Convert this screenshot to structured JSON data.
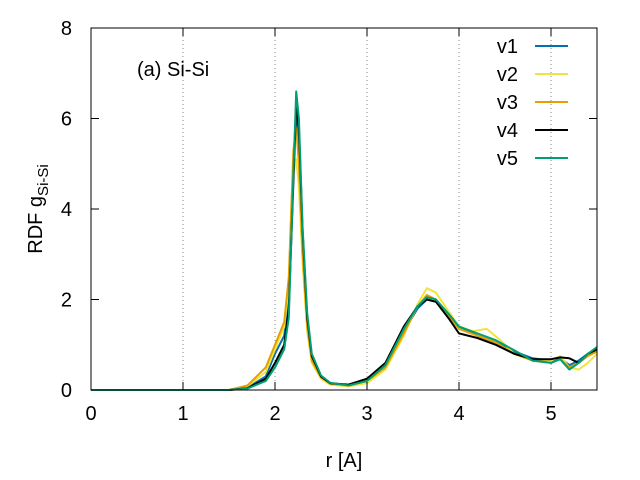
{
  "chart_data": {
    "type": "line",
    "annotation": "(a) Si-Si",
    "xlabel": "r  [A]",
    "ylabel_main": "RDF  g",
    "ylabel_sub": "Si-Si",
    "xlim": [
      0,
      5.5
    ],
    "ylim": [
      0,
      8
    ],
    "xticks": [
      0,
      1,
      2,
      3,
      4,
      5
    ],
    "yticks": [
      0,
      2,
      4,
      6,
      8
    ],
    "xgrid": "dotted vertical lines at x ticks",
    "legend_position": "top-right",
    "series": [
      {
        "name": "v1",
        "color": "#0072b2",
        "points": [
          [
            0,
            0
          ],
          [
            1.5,
            0
          ],
          [
            1.7,
            0.05
          ],
          [
            1.9,
            0.3
          ],
          [
            2.0,
            0.8
          ],
          [
            2.1,
            1.2
          ],
          [
            2.15,
            2.0
          ],
          [
            2.2,
            5.0
          ],
          [
            2.23,
            6.2
          ],
          [
            2.26,
            5.5
          ],
          [
            2.3,
            3.2
          ],
          [
            2.35,
            1.5
          ],
          [
            2.4,
            0.7
          ],
          [
            2.5,
            0.3
          ],
          [
            2.6,
            0.15
          ],
          [
            2.8,
            0.1
          ],
          [
            3.0,
            0.2
          ],
          [
            3.2,
            0.5
          ],
          [
            3.4,
            1.3
          ],
          [
            3.55,
            1.8
          ],
          [
            3.65,
            2.0
          ],
          [
            3.75,
            1.95
          ],
          [
            3.9,
            1.6
          ],
          [
            4.0,
            1.4
          ],
          [
            4.2,
            1.2
          ],
          [
            4.4,
            1.05
          ],
          [
            4.6,
            0.85
          ],
          [
            4.8,
            0.7
          ],
          [
            5.0,
            0.65
          ],
          [
            5.1,
            0.7
          ],
          [
            5.2,
            0.55
          ],
          [
            5.3,
            0.65
          ],
          [
            5.4,
            0.8
          ],
          [
            5.5,
            0.9
          ]
        ]
      },
      {
        "name": "v2",
        "color": "#f0e442",
        "points": [
          [
            0,
            0
          ],
          [
            1.5,
            0
          ],
          [
            1.7,
            0.08
          ],
          [
            1.9,
            0.4
          ],
          [
            2.0,
            0.9
          ],
          [
            2.1,
            1.4
          ],
          [
            2.15,
            2.3
          ],
          [
            2.2,
            4.8
          ],
          [
            2.23,
            5.1
          ],
          [
            2.26,
            4.5
          ],
          [
            2.3,
            2.8
          ],
          [
            2.35,
            1.3
          ],
          [
            2.4,
            0.6
          ],
          [
            2.5,
            0.25
          ],
          [
            2.6,
            0.12
          ],
          [
            2.8,
            0.08
          ],
          [
            3.0,
            0.15
          ],
          [
            3.2,
            0.45
          ],
          [
            3.4,
            1.2
          ],
          [
            3.55,
            1.9
          ],
          [
            3.65,
            2.25
          ],
          [
            3.75,
            2.15
          ],
          [
            3.9,
            1.7
          ],
          [
            4.0,
            1.4
          ],
          [
            4.15,
            1.3
          ],
          [
            4.3,
            1.35
          ],
          [
            4.45,
            1.1
          ],
          [
            4.6,
            0.8
          ],
          [
            4.8,
            0.65
          ],
          [
            5.0,
            0.65
          ],
          [
            5.1,
            0.75
          ],
          [
            5.2,
            0.5
          ],
          [
            5.3,
            0.45
          ],
          [
            5.4,
            0.6
          ],
          [
            5.5,
            0.8
          ]
        ]
      },
      {
        "name": "v3",
        "color": "#e69f00",
        "points": [
          [
            0,
            0
          ],
          [
            1.5,
            0
          ],
          [
            1.7,
            0.1
          ],
          [
            1.9,
            0.5
          ],
          [
            2.0,
            1.0
          ],
          [
            2.1,
            1.5
          ],
          [
            2.15,
            2.5
          ],
          [
            2.2,
            5.3
          ],
          [
            2.23,
            5.8
          ],
          [
            2.26,
            5.0
          ],
          [
            2.3,
            3.0
          ],
          [
            2.35,
            1.4
          ],
          [
            2.4,
            0.65
          ],
          [
            2.5,
            0.28
          ],
          [
            2.6,
            0.14
          ],
          [
            2.8,
            0.1
          ],
          [
            3.0,
            0.2
          ],
          [
            3.2,
            0.5
          ],
          [
            3.4,
            1.25
          ],
          [
            3.55,
            1.85
          ],
          [
            3.65,
            2.1
          ],
          [
            3.75,
            2.0
          ],
          [
            3.9,
            1.6
          ],
          [
            4.0,
            1.35
          ],
          [
            4.2,
            1.2
          ],
          [
            4.4,
            1.05
          ],
          [
            4.6,
            0.8
          ],
          [
            4.8,
            0.65
          ],
          [
            5.0,
            0.6
          ],
          [
            5.1,
            0.68
          ],
          [
            5.2,
            0.5
          ],
          [
            5.3,
            0.6
          ],
          [
            5.4,
            0.75
          ],
          [
            5.5,
            0.85
          ]
        ]
      },
      {
        "name": "v4",
        "color": "#000000",
        "points": [
          [
            0,
            0
          ],
          [
            1.5,
            0
          ],
          [
            1.7,
            0.04
          ],
          [
            1.9,
            0.25
          ],
          [
            2.0,
            0.6
          ],
          [
            2.1,
            1.0
          ],
          [
            2.15,
            1.8
          ],
          [
            2.2,
            4.6
          ],
          [
            2.23,
            6.3
          ],
          [
            2.26,
            5.8
          ],
          [
            2.3,
            3.5
          ],
          [
            2.35,
            1.6
          ],
          [
            2.4,
            0.75
          ],
          [
            2.5,
            0.3
          ],
          [
            2.6,
            0.15
          ],
          [
            2.8,
            0.12
          ],
          [
            3.0,
            0.25
          ],
          [
            3.2,
            0.6
          ],
          [
            3.4,
            1.4
          ],
          [
            3.55,
            1.85
          ],
          [
            3.65,
            2.0
          ],
          [
            3.75,
            1.95
          ],
          [
            3.9,
            1.55
          ],
          [
            4.0,
            1.25
          ],
          [
            4.2,
            1.15
          ],
          [
            4.4,
            1.0
          ],
          [
            4.6,
            0.8
          ],
          [
            4.8,
            0.68
          ],
          [
            5.0,
            0.68
          ],
          [
            5.1,
            0.72
          ],
          [
            5.2,
            0.7
          ],
          [
            5.3,
            0.6
          ],
          [
            5.4,
            0.8
          ],
          [
            5.5,
            0.9
          ]
        ]
      },
      {
        "name": "v5",
        "color": "#009e73",
        "points": [
          [
            0,
            0
          ],
          [
            1.5,
            0
          ],
          [
            1.7,
            0.03
          ],
          [
            1.9,
            0.2
          ],
          [
            2.0,
            0.5
          ],
          [
            2.1,
            0.9
          ],
          [
            2.15,
            1.6
          ],
          [
            2.2,
            4.8
          ],
          [
            2.23,
            6.6
          ],
          [
            2.26,
            6.0
          ],
          [
            2.3,
            3.6
          ],
          [
            2.35,
            1.7
          ],
          [
            2.4,
            0.8
          ],
          [
            2.5,
            0.32
          ],
          [
            2.6,
            0.16
          ],
          [
            2.8,
            0.1
          ],
          [
            3.0,
            0.2
          ],
          [
            3.2,
            0.55
          ],
          [
            3.4,
            1.35
          ],
          [
            3.55,
            1.85
          ],
          [
            3.65,
            2.05
          ],
          [
            3.75,
            2.0
          ],
          [
            3.9,
            1.65
          ],
          [
            4.0,
            1.4
          ],
          [
            4.2,
            1.25
          ],
          [
            4.4,
            1.1
          ],
          [
            4.6,
            0.88
          ],
          [
            4.8,
            0.65
          ],
          [
            5.0,
            0.6
          ],
          [
            5.1,
            0.68
          ],
          [
            5.2,
            0.45
          ],
          [
            5.3,
            0.6
          ],
          [
            5.4,
            0.8
          ],
          [
            5.5,
            0.95
          ]
        ]
      }
    ]
  }
}
